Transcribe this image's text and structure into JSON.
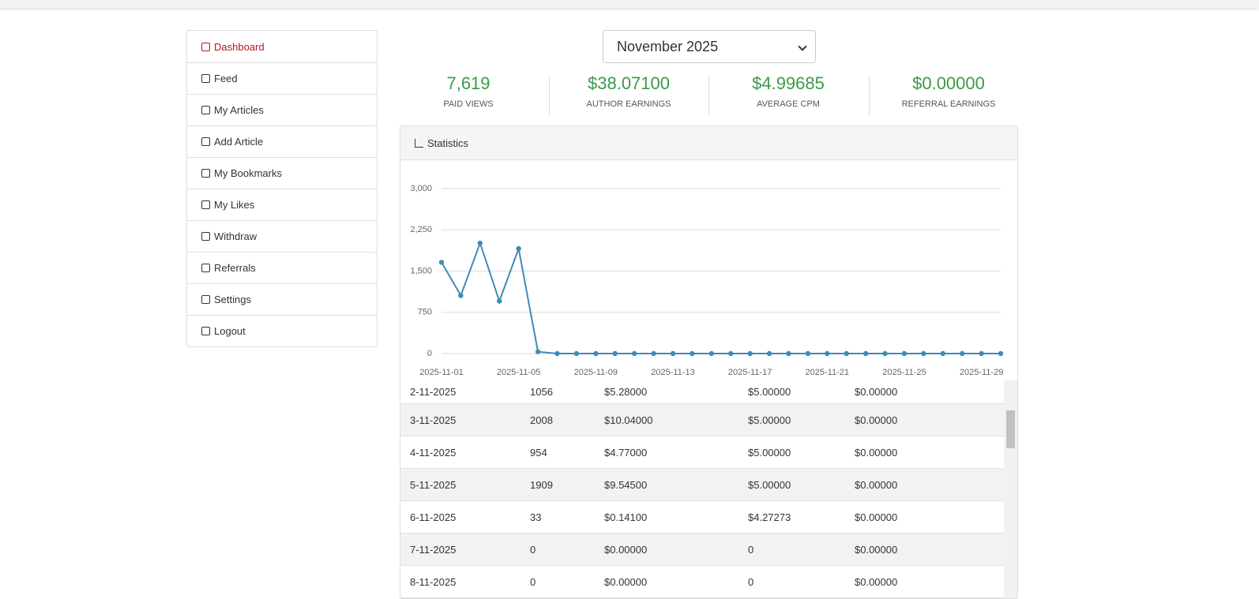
{
  "sidebar": {
    "items": [
      "Dashboard",
      "Feed",
      "My Articles",
      "Add Article",
      "My Bookmarks",
      "My Likes",
      "Withdraw",
      "Referrals",
      "Settings",
      "Logout"
    ]
  },
  "month_select": "November 2025",
  "stats": [
    {
      "value": "7,619",
      "label": "PAID VIEWS"
    },
    {
      "value": "$38.07100",
      "label": "AUTHOR EARNINGS"
    },
    {
      "value": "$4.99685",
      "label": "AVERAGE CPM"
    },
    {
      "value": "$0.00000",
      "label": "REFERRAL EARNINGS"
    }
  ],
  "panel_title": "Statistics",
  "chart_data": {
    "type": "line",
    "categories": [
      "2025-11-01",
      null,
      null,
      null,
      "2025-11-05",
      null,
      null,
      null,
      "2025-11-09",
      null,
      null,
      null,
      "2025-11-13",
      null,
      null,
      null,
      "2025-11-17",
      null,
      null,
      null,
      "2025-11-21",
      null,
      null,
      null,
      "2025-11-25",
      null,
      null,
      null,
      "2025-11-29",
      null
    ],
    "values": [
      1659,
      1056,
      2008,
      954,
      1909,
      33,
      0,
      0,
      0,
      0,
      0,
      0,
      0,
      0,
      0,
      0,
      0,
      0,
      0,
      0,
      0,
      0,
      0,
      0,
      0,
      0,
      0,
      0,
      0,
      0
    ],
    "color": "#3f8bb6",
    "ylim": [
      0,
      3000
    ],
    "yticks": [
      0,
      750,
      {
        "value": 1500,
        "label": "1,500"
      },
      {
        "value": 2250,
        "label": "2,250"
      },
      {
        "value": 3000,
        "label": "3,000"
      }
    ],
    "grid": true
  },
  "table": {
    "rows": [
      [
        "2-11-2025",
        "1056",
        "$5.28000",
        "$5.00000",
        "$0.00000"
      ],
      [
        "3-11-2025",
        "2008",
        "$10.04000",
        "$5.00000",
        "$0.00000"
      ],
      [
        "4-11-2025",
        "954",
        "$4.77000",
        "$5.00000",
        "$0.00000"
      ],
      [
        "5-11-2025",
        "1909",
        "$9.54500",
        "$5.00000",
        "$0.00000"
      ],
      [
        "6-11-2025",
        "33",
        "$0.14100",
        "$4.27273",
        "$0.00000"
      ],
      [
        "7-11-2025",
        "0",
        "$0.00000",
        "0",
        "$0.00000"
      ],
      [
        "8-11-2025",
        "0",
        "$0.00000",
        "0",
        "$0.00000"
      ]
    ]
  }
}
